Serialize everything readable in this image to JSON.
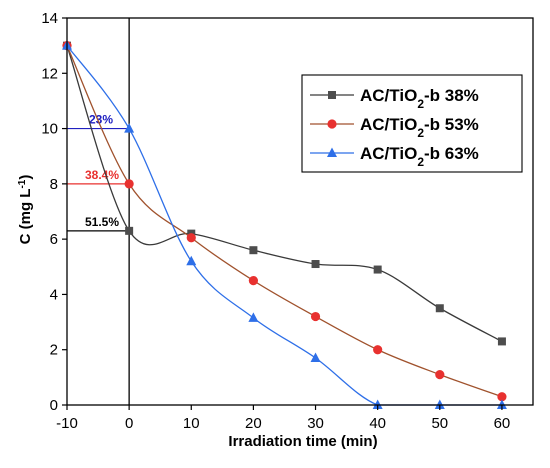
{
  "chart_data": {
    "type": "line",
    "xlabel": "Irradiation time (min)",
    "ylabel_main": "C (mg L",
    "ylabel_sup": "-1",
    "ylabel_close": ")",
    "xlim": [
      -10,
      65
    ],
    "ylim": [
      0,
      14
    ],
    "x_ticks": [
      -10,
      0,
      10,
      20,
      30,
      40,
      50,
      60
    ],
    "y_ticks": [
      0,
      2,
      4,
      6,
      8,
      10,
      12,
      14
    ],
    "grid": false,
    "legend_position": "top-right",
    "series": [
      {
        "name": "AC/TiO2-b 38%",
        "legend_main": "AC/TiO",
        "legend_sub": "2",
        "legend_rest": "-b 38%",
        "color": "#4d4d4d",
        "line_color": "#3a3a3a",
        "marker": "square",
        "x": [
          -10,
          0,
          10,
          20,
          30,
          40,
          50,
          60
        ],
        "values": [
          13.0,
          6.3,
          6.2,
          5.6,
          5.1,
          4.9,
          3.5,
          2.3
        ],
        "annotation": {
          "text": "51.5%",
          "y": 6.3,
          "color": "#000000"
        }
      },
      {
        "name": "AC/TiO2-b 53%",
        "legend_main": "AC/TiO",
        "legend_sub": "2",
        "legend_rest": "-b 53%",
        "color": "#e8312f",
        "line_color": "#a0522d",
        "marker": "circle",
        "x": [
          -10,
          0,
          10,
          20,
          30,
          40,
          50,
          60
        ],
        "values": [
          13.0,
          8.0,
          6.05,
          4.5,
          3.2,
          2.0,
          1.1,
          0.3
        ],
        "annotation": {
          "text": "38.4%",
          "y": 8.0,
          "color": "#e8312f"
        }
      },
      {
        "name": "AC/TiO2-b 63%",
        "legend_main": "AC/TiO",
        "legend_sub": "2",
        "legend_rest": "-b 63%",
        "color": "#2e6fe8",
        "line_color": "#2e6fe8",
        "marker": "triangle",
        "x": [
          -10,
          0,
          10,
          20,
          30,
          40,
          50,
          60
        ],
        "values": [
          13.0,
          10.0,
          5.2,
          3.15,
          1.7,
          0.0,
          0.0,
          0.0
        ],
        "annotation": {
          "text": "23%",
          "y": 10.0,
          "color": "#2020c0"
        }
      }
    ]
  }
}
